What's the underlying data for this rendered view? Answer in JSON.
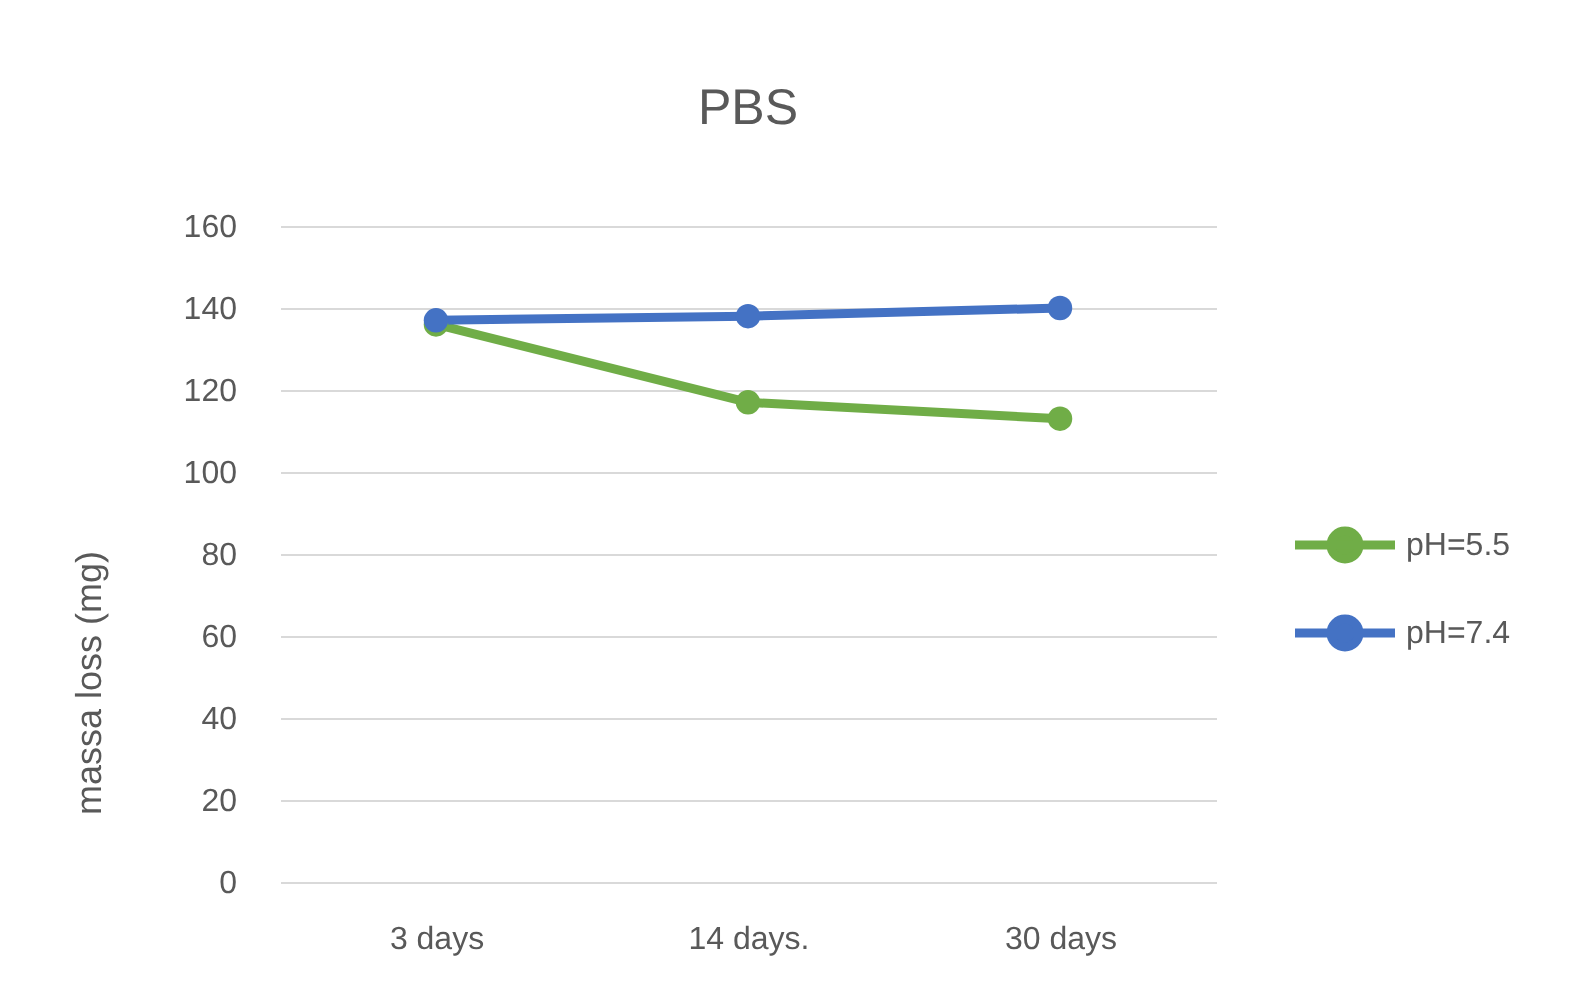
{
  "chart_data": {
    "type": "line",
    "title": "PBS",
    "ylabel": "massa loss (mg)",
    "categories": [
      "3 days",
      "14 days.",
      "30 days"
    ],
    "series": [
      {
        "name": "pH=5.5",
        "color": "#70ad47",
        "values": [
          136,
          117,
          113
        ]
      },
      {
        "name": "pH=7.4",
        "color": "#4472c4",
        "values": [
          137,
          138,
          140
        ]
      }
    ],
    "ylim": [
      0,
      160
    ],
    "yticks": [
      0,
      20,
      40,
      60,
      80,
      100,
      120,
      140,
      160
    ],
    "grid": "y",
    "legend": "right",
    "marker": "circle",
    "line_style": "solid"
  }
}
